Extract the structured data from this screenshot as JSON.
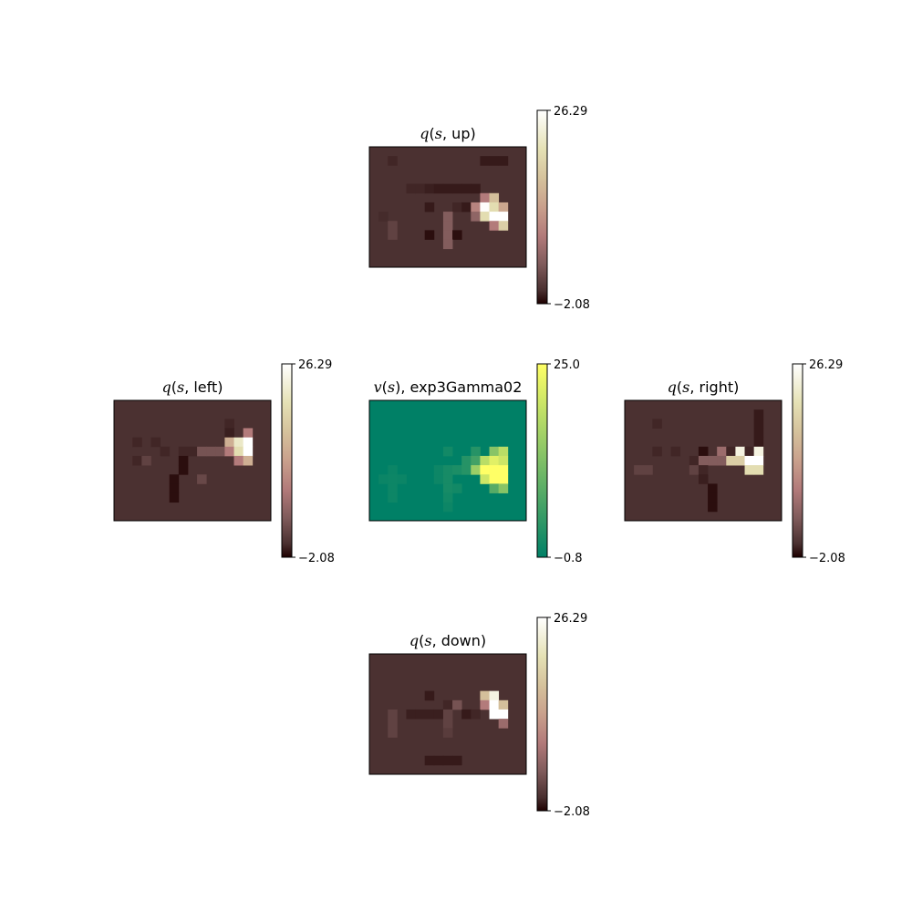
{
  "chart_data": [
    {
      "type": "heatmap",
      "title": "q(s, up)",
      "title_parts": {
        "func": "q",
        "arg": "s",
        "action": "up"
      },
      "colormap": "pink",
      "colorbar": {
        "ticks": [
          "26.29",
          "−2.08"
        ],
        "min": -2.08,
        "max": 26.29
      },
      "grid_size": [
        13,
        17
      ],
      "background": 0,
      "cells": [
        {
          "r": 1,
          "c": 2,
          "v": -0.5
        },
        {
          "r": 1,
          "c": 12,
          "v": -1.0
        },
        {
          "r": 1,
          "c": 13,
          "v": -1.0
        },
        {
          "r": 1,
          "c": 14,
          "v": -1.0
        },
        {
          "r": 4,
          "c": 4,
          "v": -0.5
        },
        {
          "r": 4,
          "c": 5,
          "v": -0.5
        },
        {
          "r": 4,
          "c": 6,
          "v": -0.8
        },
        {
          "r": 4,
          "c": 7,
          "v": -1.0
        },
        {
          "r": 4,
          "c": 8,
          "v": -1.0
        },
        {
          "r": 4,
          "c": 9,
          "v": -1.0
        },
        {
          "r": 4,
          "c": 10,
          "v": -1.0
        },
        {
          "r": 4,
          "c": 11,
          "v": -1.0
        },
        {
          "r": 5,
          "c": 12,
          "v": 8.0
        },
        {
          "r": 5,
          "c": 13,
          "v": 16.0
        },
        {
          "r": 6,
          "c": 6,
          "v": -1.0
        },
        {
          "r": 6,
          "c": 9,
          "v": -0.5
        },
        {
          "r": 6,
          "c": 10,
          "v": -1.0
        },
        {
          "r": 6,
          "c": 11,
          "v": 9.0
        },
        {
          "r": 6,
          "c": 12,
          "v": 26.0
        },
        {
          "r": 6,
          "c": 13,
          "v": 20.0
        },
        {
          "r": 6,
          "c": 14,
          "v": 13.0
        },
        {
          "r": 7,
          "c": 1,
          "v": -0.3
        },
        {
          "r": 7,
          "c": 8,
          "v": 4.0
        },
        {
          "r": 7,
          "c": 11,
          "v": 5.0
        },
        {
          "r": 7,
          "c": 12,
          "v": 20.0
        },
        {
          "r": 7,
          "c": 13,
          "v": 26.29
        },
        {
          "r": 7,
          "c": 14,
          "v": 26.29
        },
        {
          "r": 8,
          "c": 2,
          "v": 1.5
        },
        {
          "r": 8,
          "c": 8,
          "v": 4.0
        },
        {
          "r": 8,
          "c": 13,
          "v": 8.0
        },
        {
          "r": 8,
          "c": 14,
          "v": 18.0
        },
        {
          "r": 9,
          "c": 2,
          "v": 1.5
        },
        {
          "r": 9,
          "c": 6,
          "v": -1.5
        },
        {
          "r": 9,
          "c": 8,
          "v": 4.0
        },
        {
          "r": 9,
          "c": 9,
          "v": -1.5
        },
        {
          "r": 10,
          "c": 8,
          "v": 4.0
        }
      ]
    },
    {
      "type": "heatmap",
      "title": "q(s, left)",
      "title_parts": {
        "func": "q",
        "arg": "s",
        "action": "left"
      },
      "colormap": "pink",
      "colorbar": {
        "ticks": [
          "26.29",
          "−2.08"
        ],
        "min": -2.08,
        "max": 26.29
      },
      "grid_size": [
        13,
        17
      ],
      "background": 0,
      "cells": [
        {
          "r": 2,
          "c": 12,
          "v": -0.5
        },
        {
          "r": 3,
          "c": 12,
          "v": -0.8
        },
        {
          "r": 3,
          "c": 14,
          "v": 8.0
        },
        {
          "r": 4,
          "c": 2,
          "v": -0.5
        },
        {
          "r": 4,
          "c": 4,
          "v": -0.5
        },
        {
          "r": 4,
          "c": 12,
          "v": 14.0
        },
        {
          "r": 4,
          "c": 13,
          "v": 22.0
        },
        {
          "r": 4,
          "c": 14,
          "v": 26.29
        },
        {
          "r": 5,
          "c": 5,
          "v": -0.5
        },
        {
          "r": 5,
          "c": 7,
          "v": -0.5
        },
        {
          "r": 5,
          "c": 8,
          "v": -0.5
        },
        {
          "r": 5,
          "c": 9,
          "v": 3.0
        },
        {
          "r": 5,
          "c": 10,
          "v": 3.0
        },
        {
          "r": 5,
          "c": 11,
          "v": 3.0
        },
        {
          "r": 5,
          "c": 12,
          "v": 8.0
        },
        {
          "r": 5,
          "c": 13,
          "v": 20.0
        },
        {
          "r": 5,
          "c": 14,
          "v": 26.29
        },
        {
          "r": 6,
          "c": 2,
          "v": -0.5
        },
        {
          "r": 6,
          "c": 3,
          "v": 1.5
        },
        {
          "r": 6,
          "c": 7,
          "v": -1.5
        },
        {
          "r": 6,
          "c": 13,
          "v": 8.0
        },
        {
          "r": 6,
          "c": 14,
          "v": 14.0
        },
        {
          "r": 7,
          "c": 7,
          "v": -1.5
        },
        {
          "r": 8,
          "c": 6,
          "v": -1.5
        },
        {
          "r": 8,
          "c": 9,
          "v": 2.0
        },
        {
          "r": 9,
          "c": 6,
          "v": -1.5
        },
        {
          "r": 10,
          "c": 6,
          "v": -1.5
        }
      ]
    },
    {
      "type": "heatmap",
      "title": "v(s), exp3Gamma02",
      "title_parts": {
        "func": "v",
        "arg": "s",
        "action": "exp3Gamma02"
      },
      "colormap": "summer",
      "colorbar": {
        "ticks": [
          "25.0",
          "−0.8"
        ],
        "min": -0.8,
        "max": 25.0
      },
      "grid_size": [
        13,
        17
      ],
      "background": -0.8,
      "cells": [
        {
          "r": 5,
          "c": 8,
          "v": 1.0
        },
        {
          "r": 5,
          "c": 11,
          "v": 3.0
        },
        {
          "r": 5,
          "c": 13,
          "v": 13.0
        },
        {
          "r": 5,
          "c": 14,
          "v": 18.0
        },
        {
          "r": 6,
          "c": 10,
          "v": 3.0
        },
        {
          "r": 6,
          "c": 11,
          "v": 6.0
        },
        {
          "r": 6,
          "c": 12,
          "v": 18.0
        },
        {
          "r": 6,
          "c": 13,
          "v": 22.0
        },
        {
          "r": 6,
          "c": 14,
          "v": 20.0
        },
        {
          "r": 7,
          "c": 2,
          "v": 0.3
        },
        {
          "r": 7,
          "c": 7,
          "v": 0.5
        },
        {
          "r": 7,
          "c": 8,
          "v": 1.5
        },
        {
          "r": 7,
          "c": 9,
          "v": 2.0
        },
        {
          "r": 7,
          "c": 10,
          "v": 3.0
        },
        {
          "r": 7,
          "c": 11,
          "v": 15.0
        },
        {
          "r": 7,
          "c": 12,
          "v": 25.0
        },
        {
          "r": 7,
          "c": 13,
          "v": 25.0
        },
        {
          "r": 7,
          "c": 14,
          "v": 25.0
        },
        {
          "r": 8,
          "c": 1,
          "v": 0.3
        },
        {
          "r": 8,
          "c": 2,
          "v": 0.5
        },
        {
          "r": 8,
          "c": 3,
          "v": 0.3
        },
        {
          "r": 8,
          "c": 7,
          "v": 0.5
        },
        {
          "r": 8,
          "c": 8,
          "v": 1.5
        },
        {
          "r": 8,
          "c": 12,
          "v": 20.0
        },
        {
          "r": 8,
          "c": 13,
          "v": 25.0
        },
        {
          "r": 8,
          "c": 14,
          "v": 25.0
        },
        {
          "r": 9,
          "c": 2,
          "v": 0.5
        },
        {
          "r": 9,
          "c": 8,
          "v": 1.5
        },
        {
          "r": 9,
          "c": 9,
          "v": 1.0
        },
        {
          "r": 9,
          "c": 13,
          "v": 8.0
        },
        {
          "r": 9,
          "c": 14,
          "v": 13.0
        },
        {
          "r": 10,
          "c": 2,
          "v": 0.5
        },
        {
          "r": 10,
          "c": 8,
          "v": 1.0
        },
        {
          "r": 11,
          "c": 8,
          "v": 0.5
        }
      ]
    },
    {
      "type": "heatmap",
      "title": "q(s, right)",
      "title_parts": {
        "func": "q",
        "arg": "s",
        "action": "right"
      },
      "colormap": "pink",
      "colorbar": {
        "ticks": [
          "26.29",
          "−2.08"
        ],
        "min": -2.08,
        "max": 26.29
      },
      "grid_size": [
        13,
        17
      ],
      "background": 0,
      "cells": [
        {
          "r": 1,
          "c": 14,
          "v": -1.0
        },
        {
          "r": 2,
          "c": 3,
          "v": -0.5
        },
        {
          "r": 2,
          "c": 14,
          "v": -1.0
        },
        {
          "r": 3,
          "c": 14,
          "v": -1.0
        },
        {
          "r": 4,
          "c": 14,
          "v": -1.0
        },
        {
          "r": 5,
          "c": 3,
          "v": -0.5
        },
        {
          "r": 5,
          "c": 5,
          "v": -0.5
        },
        {
          "r": 5,
          "c": 8,
          "v": -1.5
        },
        {
          "r": 5,
          "c": 10,
          "v": 6.0
        },
        {
          "r": 5,
          "c": 11,
          "v": -0.5
        },
        {
          "r": 5,
          "c": 12,
          "v": 24.0
        },
        {
          "r": 5,
          "c": 13,
          "v": -0.5
        },
        {
          "r": 5,
          "c": 14,
          "v": 24.0
        },
        {
          "r": 6,
          "c": 7,
          "v": -0.5
        },
        {
          "r": 6,
          "c": 8,
          "v": 4.0
        },
        {
          "r": 6,
          "c": 9,
          "v": 4.0
        },
        {
          "r": 6,
          "c": 10,
          "v": 4.0
        },
        {
          "r": 6,
          "c": 11,
          "v": 18.0
        },
        {
          "r": 6,
          "c": 12,
          "v": 18.0
        },
        {
          "r": 6,
          "c": 13,
          "v": 26.29
        },
        {
          "r": 6,
          "c": 14,
          "v": 26.29
        },
        {
          "r": 7,
          "c": 1,
          "v": 1.5
        },
        {
          "r": 7,
          "c": 2,
          "v": 1.5
        },
        {
          "r": 7,
          "c": 7,
          "v": 1.5
        },
        {
          "r": 7,
          "c": 8,
          "v": -0.5
        },
        {
          "r": 7,
          "c": 13,
          "v": 20.0
        },
        {
          "r": 7,
          "c": 14,
          "v": 20.0
        },
        {
          "r": 8,
          "c": 8,
          "v": -0.8
        },
        {
          "r": 9,
          "c": 9,
          "v": -1.5
        },
        {
          "r": 10,
          "c": 9,
          "v": -1.5
        },
        {
          "r": 11,
          "c": 9,
          "v": -1.5
        }
      ]
    },
    {
      "type": "heatmap",
      "title": "q(s, down)",
      "title_parts": {
        "func": "q",
        "arg": "s",
        "action": "down"
      },
      "colormap": "pink",
      "colorbar": {
        "ticks": [
          "26.29",
          "−2.08"
        ],
        "min": -2.08,
        "max": 26.29
      },
      "grid_size": [
        13,
        17
      ],
      "background": 0,
      "cells": [
        {
          "r": 4,
          "c": 6,
          "v": -1.0
        },
        {
          "r": 4,
          "c": 12,
          "v": 16.0
        },
        {
          "r": 4,
          "c": 13,
          "v": 24.0
        },
        {
          "r": 5,
          "c": 8,
          "v": -0.5
        },
        {
          "r": 5,
          "c": 9,
          "v": 3.0
        },
        {
          "r": 5,
          "c": 12,
          "v": 8.0
        },
        {
          "r": 5,
          "c": 13,
          "v": 26.29
        },
        {
          "r": 5,
          "c": 14,
          "v": 16.0
        },
        {
          "r": 6,
          "c": 2,
          "v": 1.5
        },
        {
          "r": 6,
          "c": 4,
          "v": -0.8
        },
        {
          "r": 6,
          "c": 5,
          "v": -0.8
        },
        {
          "r": 6,
          "c": 6,
          "v": -0.8
        },
        {
          "r": 6,
          "c": 7,
          "v": -0.8
        },
        {
          "r": 6,
          "c": 8,
          "v": 1.5
        },
        {
          "r": 6,
          "c": 10,
          "v": -1.0
        },
        {
          "r": 6,
          "c": 11,
          "v": -0.5
        },
        {
          "r": 6,
          "c": 13,
          "v": 26.29
        },
        {
          "r": 6,
          "c": 14,
          "v": 26.29
        },
        {
          "r": 7,
          "c": 2,
          "v": 1.5
        },
        {
          "r": 7,
          "c": 8,
          "v": 1.5
        },
        {
          "r": 7,
          "c": 14,
          "v": 6.0
        },
        {
          "r": 8,
          "c": 2,
          "v": 1.5
        },
        {
          "r": 8,
          "c": 8,
          "v": 1.0
        },
        {
          "r": 11,
          "c": 6,
          "v": -1.0
        },
        {
          "r": 11,
          "c": 7,
          "v": -1.0
        },
        {
          "r": 11,
          "c": 8,
          "v": -1.0
        },
        {
          "r": 11,
          "c": 9,
          "v": -1.0
        }
      ]
    }
  ]
}
